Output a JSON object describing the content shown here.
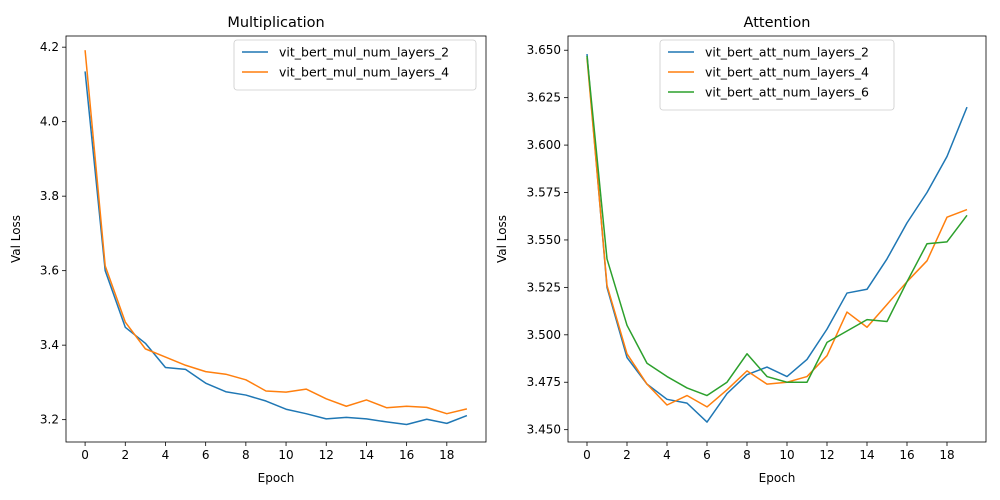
{
  "chart_data": [
    {
      "type": "line",
      "title": "Multiplication",
      "xlabel": "Epoch",
      "ylabel": "Val Loss",
      "x": [
        0,
        1,
        2,
        3,
        4,
        5,
        6,
        7,
        8,
        9,
        10,
        11,
        12,
        13,
        14,
        15,
        16,
        17,
        18,
        19
      ],
      "xlim": [
        -0.95,
        19.95
      ],
      "ylim": [
        3.14,
        4.23
      ],
      "xticks": [
        "0",
        "2",
        "4",
        "6",
        "8",
        "10",
        "12",
        "14",
        "16",
        "18"
      ],
      "yticks": [
        "3.2",
        "3.4",
        "3.6",
        "3.8",
        "4.0",
        "4.2"
      ],
      "legend_position": "top-right",
      "grid": false,
      "series": [
        {
          "name": "vit_bert_mul_num_layers_2",
          "color": "#1f77b4",
          "values": [
            4.135,
            3.6,
            3.448,
            3.405,
            3.34,
            3.335,
            3.298,
            3.275,
            3.266,
            3.25,
            3.228,
            3.216,
            3.202,
            3.206,
            3.202,
            3.194,
            3.187,
            3.201,
            3.19,
            3.211
          ]
        },
        {
          "name": "vit_bert_mul_num_layers_4",
          "color": "#ff7f0e",
          "values": [
            4.192,
            3.613,
            3.462,
            3.39,
            3.368,
            3.346,
            3.329,
            3.322,
            3.307,
            3.277,
            3.274,
            3.282,
            3.256,
            3.236,
            3.253,
            3.232,
            3.236,
            3.233,
            3.216,
            3.229
          ]
        }
      ]
    },
    {
      "type": "line",
      "title": "Attention",
      "xlabel": "Epoch",
      "ylabel": "Val Loss",
      "x": [
        0,
        1,
        2,
        3,
        4,
        5,
        6,
        7,
        8,
        9,
        10,
        11,
        12,
        13,
        14,
        15,
        16,
        17,
        18,
        19
      ],
      "xlim": [
        -0.95,
        19.95
      ],
      "ylim": [
        3.4435,
        3.6575
      ],
      "xticks": [
        "0",
        "2",
        "4",
        "6",
        "8",
        "10",
        "12",
        "14",
        "16",
        "18"
      ],
      "yticks": [
        "3.450",
        "3.475",
        "3.500",
        "3.525",
        "3.550",
        "3.575",
        "3.600",
        "3.625",
        "3.650"
      ],
      "legend_position": "upper-center",
      "grid": false,
      "series": [
        {
          "name": "vit_bert_att_num_layers_2",
          "color": "#1f77b4",
          "values": [
            3.648,
            3.525,
            3.488,
            3.474,
            3.466,
            3.464,
            3.454,
            3.469,
            3.479,
            3.483,
            3.478,
            3.487,
            3.503,
            3.522,
            3.524,
            3.54,
            3.559,
            3.575,
            3.594,
            3.62
          ]
        },
        {
          "name": "vit_bert_att_num_layers_4",
          "color": "#ff7f0e",
          "values": [
            3.646,
            3.526,
            3.49,
            3.474,
            3.463,
            3.468,
            3.462,
            3.471,
            3.481,
            3.474,
            3.475,
            3.478,
            3.489,
            3.512,
            3.504,
            3.516,
            3.528,
            3.539,
            3.562,
            3.566
          ]
        },
        {
          "name": "vit_bert_att_num_layers_6",
          "color": "#2ca02c",
          "values": [
            3.647,
            3.54,
            3.505,
            3.485,
            3.478,
            3.472,
            3.468,
            3.475,
            3.49,
            3.478,
            3.475,
            3.475,
            3.496,
            3.502,
            3.508,
            3.507,
            3.528,
            3.548,
            3.549,
            3.563
          ]
        }
      ]
    }
  ]
}
